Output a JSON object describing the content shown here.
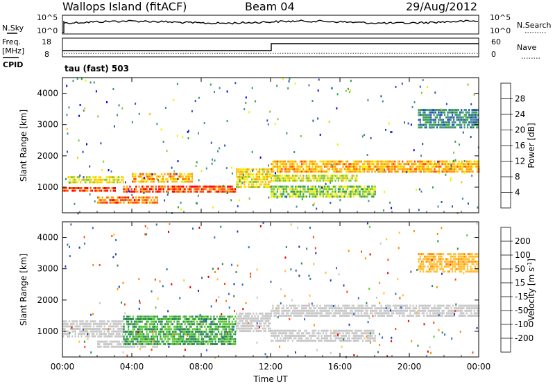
{
  "header": {
    "station": "Wallops Island (fitACF)",
    "beam": "Beam 04",
    "date": "29/Aug/2012"
  },
  "noise_panel": {
    "left_label": "N.Sky",
    "right_label": "N.Search",
    "left_ticks": [
      "10^5",
      "10^0"
    ],
    "right_ticks": [
      "10^5",
      "10^0"
    ],
    "right_line_style": "dotted"
  },
  "freq_panel": {
    "left_label_line1": "Freq.",
    "left_label_line2": "[MHz]",
    "cpid_label": "CPID",
    "right_label": "Nave",
    "left_ticks": [
      "18",
      "8"
    ],
    "right_ticks": [
      "60",
      "0"
    ],
    "right_line_style": "dotted"
  },
  "mode": {
    "label": "tau (fast) 503"
  },
  "xaxis": {
    "label": "Time UT",
    "ticks": [
      "00:00",
      "04:00",
      "08:00",
      "12:00",
      "16:00",
      "20:00",
      "00:00"
    ]
  },
  "yaxis": {
    "label": "Slant Range [km]",
    "ticks": [
      "1000",
      "2000",
      "3000",
      "4000"
    ]
  },
  "chart_data": [
    {
      "type": "heatmap",
      "name": "power",
      "x_range_hours": [
        0,
        24
      ],
      "y_range_km": [
        180,
        4500
      ],
      "colorbar_title": "Power [dB]",
      "colorbar_labels": [
        "4",
        "8",
        "12",
        "16",
        "20",
        "24",
        "28"
      ],
      "colorbar_range": [
        0,
        30
      ],
      "colors": [
        "#0000ff",
        "#2a52b0",
        "#3f8f8f",
        "#35a050",
        "#80c83c",
        "#f4ee00",
        "#ffc000",
        "#ff9a00",
        "#ff5000",
        "#ff0000"
      ],
      "features": [
        {
          "t": [
            0.0,
            3.0
          ],
          "r": [
            850,
            1000
          ],
          "level": 26
        },
        {
          "t": [
            0.3,
            3.5
          ],
          "r": [
            1180,
            1350
          ],
          "level": 17
        },
        {
          "t": [
            2.0,
            5.5
          ],
          "r": [
            500,
            700
          ],
          "level": 24
        },
        {
          "t": [
            3.5,
            10.0
          ],
          "r": [
            820,
            1050
          ],
          "level": 26
        },
        {
          "t": [
            4.0,
            7.5
          ],
          "r": [
            1150,
            1450
          ],
          "level": 21
        },
        {
          "t": [
            10.0,
            12.0
          ],
          "r": [
            1000,
            1600
          ],
          "level": 18
        },
        {
          "t": [
            12.0,
            24.0
          ],
          "r": [
            1500,
            1850
          ],
          "level": 21
        },
        {
          "t": [
            12.0,
            18.0
          ],
          "r": [
            700,
            1050
          ],
          "level": 14
        },
        {
          "t": [
            12.0,
            17.0
          ],
          "r": [
            1200,
            1400
          ],
          "level": 16
        },
        {
          "t": [
            20.5,
            24.0
          ],
          "r": [
            2900,
            3500
          ],
          "level": 8
        }
      ]
    },
    {
      "type": "heatmap",
      "name": "velocity",
      "x_range_hours": [
        0,
        24
      ],
      "y_range_km": [
        180,
        4500
      ],
      "colorbar_title": "Velocity [m s^-1]",
      "colorbar_labels": [
        "200",
        "100",
        "50",
        "15",
        "-15",
        "-50",
        "-100",
        "-200"
      ],
      "colorbar_range": [
        -250,
        250
      ],
      "colors": [
        "#1e3ea8",
        "#3366cc",
        "#2e8b57",
        "#59c832",
        "#c8c8c8",
        "#ffbe32",
        "#ff8c00",
        "#ff4500",
        "#e60000"
      ],
      "features": [
        {
          "t": [
            0.0,
            3.5
          ],
          "r": [
            850,
            1350
          ],
          "v": 0
        },
        {
          "t": [
            2.0,
            5.5
          ],
          "r": [
            500,
            700
          ],
          "v": 0
        },
        {
          "t": [
            3.5,
            10.0
          ],
          "r": [
            550,
            1500
          ],
          "v": 30
        },
        {
          "t": [
            10.0,
            12.0
          ],
          "r": [
            1000,
            1600
          ],
          "v": 0
        },
        {
          "t": [
            12.0,
            24.0
          ],
          "r": [
            1500,
            1850
          ],
          "v": 0
        },
        {
          "t": [
            12.0,
            18.0
          ],
          "r": [
            700,
            1050
          ],
          "v": 0
        },
        {
          "t": [
            20.5,
            24.0
          ],
          "r": [
            2900,
            3500
          ],
          "v": -40
        }
      ]
    }
  ]
}
